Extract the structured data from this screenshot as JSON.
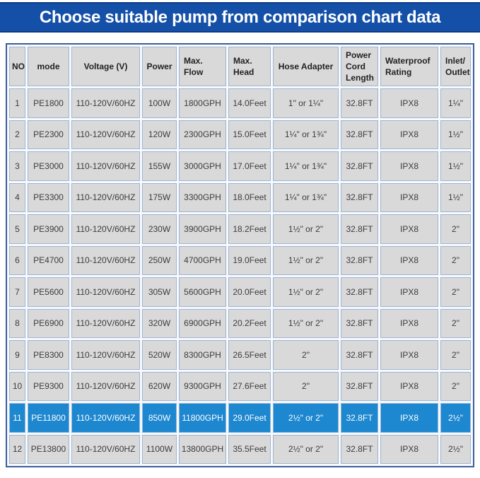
{
  "banner": {
    "title": "Choose suitable pump from comparison chart data",
    "bg_color": "#1550a8",
    "text_color": "#ffffff"
  },
  "table": {
    "columns": [
      "NO",
      "mode",
      "Voltage (V)",
      "Power",
      "Max. Flow",
      "Max. Head",
      "Hose Adapter",
      "Power Cord Length",
      "Waterproof Rating",
      "Inlet/ Outlet"
    ],
    "highlighted_no": "11",
    "highlight_color": "#1d87cf",
    "rows": [
      [
        "1",
        "PE1800",
        "110-120V/60HZ",
        "100W",
        "1800GPH",
        "14.0Feet",
        "1\" or 1¼\"",
        "32.8FT",
        "IPX8",
        "1¼\""
      ],
      [
        "2",
        "PE2300",
        "110-120V/60HZ",
        "120W",
        "2300GPH",
        "15.0Feet",
        "1¼\" or 1¾\"",
        "32.8FT",
        "IPX8",
        "1½\""
      ],
      [
        "3",
        "PE3000",
        "110-120V/60HZ",
        "155W",
        "3000GPH",
        "17.0Feet",
        "1¼\" or 1¾\"",
        "32.8FT",
        "IPX8",
        "1½\""
      ],
      [
        "4",
        "PE3300",
        "110-120V/60HZ",
        "175W",
        "3300GPH",
        "18.0Feet",
        "1¼\" or 1¾\"",
        "32.8FT",
        "IPX8",
        "1½\""
      ],
      [
        "5",
        "PE3900",
        "110-120V/60HZ",
        "230W",
        "3900GPH",
        "18.2Feet",
        "1½\" or 2\"",
        "32.8FT",
        "IPX8",
        "2\""
      ],
      [
        "6",
        "PE4700",
        "110-120V/60HZ",
        "250W",
        "4700GPH",
        "19.0Feet",
        "1½\" or 2\"",
        "32.8FT",
        "IPX8",
        "2\""
      ],
      [
        "7",
        "PE5600",
        "110-120V/60HZ",
        "305W",
        "5600GPH",
        "20.0Feet",
        "1½\" or 2\"",
        "32.8FT",
        "IPX8",
        "2\""
      ],
      [
        "8",
        "PE6900",
        "110-120V/60HZ",
        "320W",
        "6900GPH",
        "20.2Feet",
        "1½\" or 2\"",
        "32.8FT",
        "IPX8",
        "2\""
      ],
      [
        "9",
        "PE8300",
        "110-120V/60HZ",
        "520W",
        "8300GPH",
        "26.5Feet",
        "2\"",
        "32.8FT",
        "IPX8",
        "2\""
      ],
      [
        "10",
        "PE9300",
        "110-120V/60HZ",
        "620W",
        "9300GPH",
        "27.6Feet",
        "2\"",
        "32.8FT",
        "IPX8",
        "2\""
      ],
      [
        "11",
        "PE11800",
        "110-120V/60HZ",
        "850W",
        "11800GPH",
        "29.0Feet",
        "2½\" or 2\"",
        "32.8FT",
        "IPX8",
        "2½\""
      ],
      [
        "12",
        "PE13800",
        "110-120V/60HZ",
        "1100W",
        "13800GPH",
        "35.5Feet",
        "2½\" or 2\"",
        "32.8FT",
        "IPX8",
        "2½\""
      ]
    ]
  }
}
